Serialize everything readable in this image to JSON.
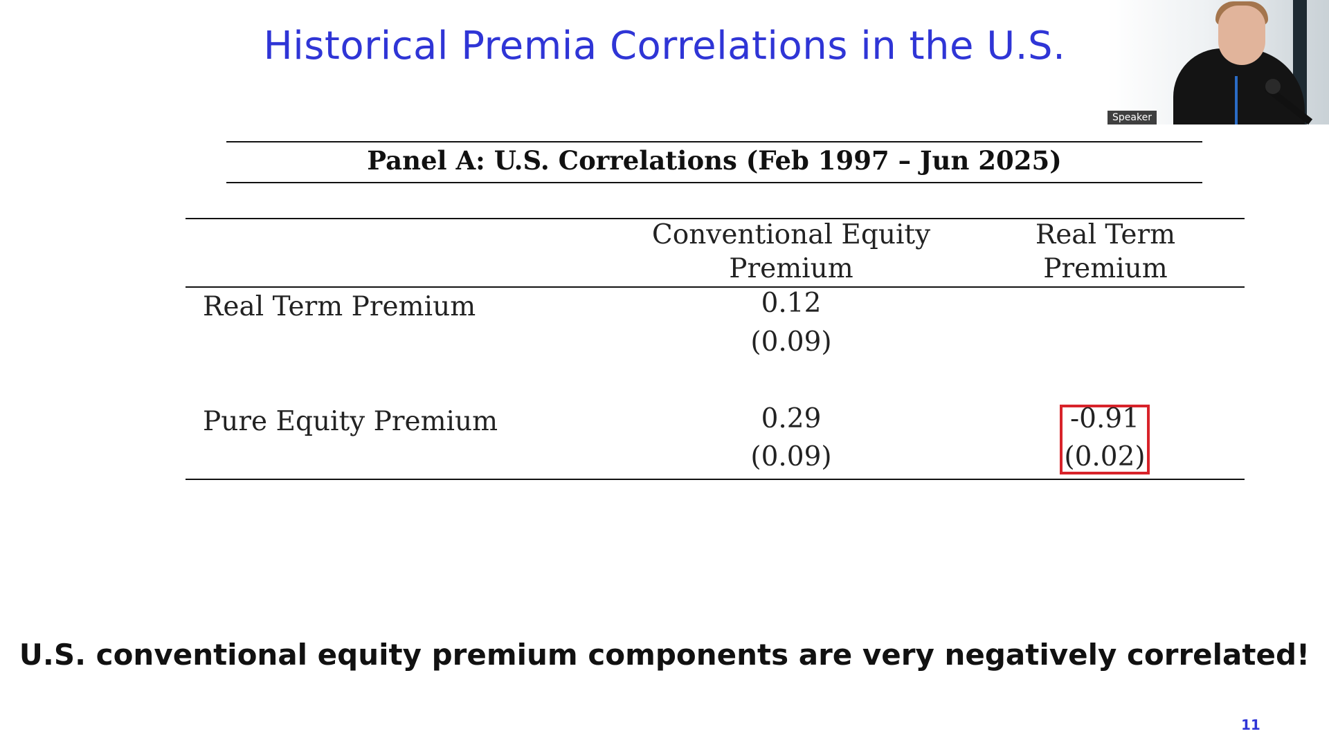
{
  "slide": {
    "title": "Historical Premia Correlations in the U.S.",
    "panel_title": "Panel A: U.S. Correlations (Feb 1997 – Jun 2025)",
    "table": {
      "columns": [
        "Conventional Equity",
        "Premium",
        "Real Term",
        "Premium"
      ],
      "rows": [
        {
          "label": "Real Term Premium",
          "conventional_equity_premium": {
            "value": "0.12",
            "se": "(0.09)"
          }
        },
        {
          "label": "Pure Equity Premium",
          "conventional_equity_premium": {
            "value": "0.29",
            "se": "(0.09)"
          },
          "real_term_premium": {
            "value": "-0.91",
            "se": "(0.02)"
          }
        }
      ]
    },
    "conclusion": "U.S. conventional equity premium components are very negatively correlated!",
    "page_number": "11"
  },
  "video_overlay": {
    "label": "Speaker"
  },
  "colors": {
    "title": "#2f35d6",
    "highlight_box": "#d8232a",
    "text": "#222222"
  }
}
